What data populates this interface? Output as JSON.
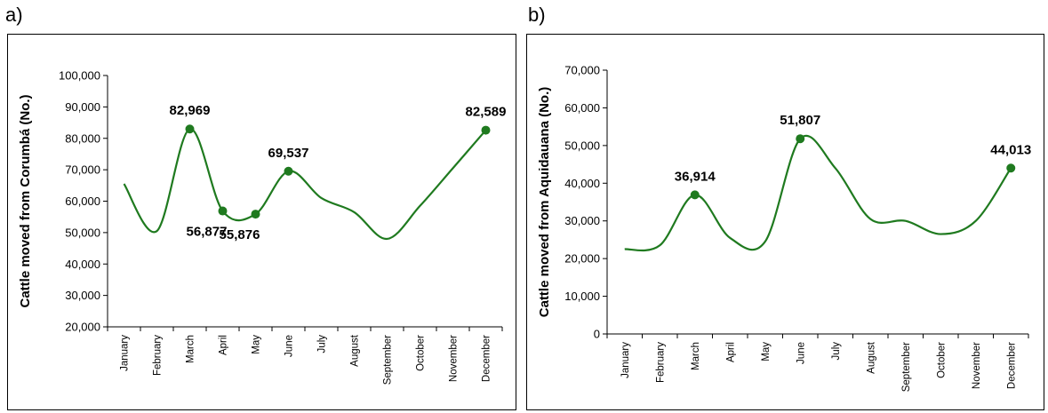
{
  "panels": [
    {
      "letter": "a)"
    },
    {
      "letter": "b)"
    }
  ],
  "chart_data": [
    {
      "type": "line",
      "title": "",
      "xlabel": "",
      "ylabel": "Cattle moved from Corumbá (No.)",
      "categories": [
        "January",
        "February",
        "March",
        "April",
        "May",
        "June",
        "July",
        "August",
        "September",
        "October",
        "November",
        "December"
      ],
      "series": [
        {
          "values": [
            65500,
            50500,
            82969,
            56877,
            55876,
            69537,
            61000,
            56500,
            48000,
            58500,
            70500,
            82589
          ],
          "color": "#1f7a1f"
        }
      ],
      "highlighted_points": [
        {
          "index": 2,
          "label": "82,969",
          "label_pos": "above"
        },
        {
          "index": 3,
          "label": "56,877",
          "label_pos": "below"
        },
        {
          "index": 4,
          "label": "55,876",
          "label_pos": "below"
        },
        {
          "index": 5,
          "label": "69,537",
          "label_pos": "above"
        },
        {
          "index": 11,
          "label": "82,589",
          "label_pos": "above"
        }
      ],
      "ylim": [
        20000,
        100000
      ],
      "yticks": [
        20000,
        30000,
        40000,
        50000,
        60000,
        70000,
        80000,
        90000,
        100000
      ],
      "ytick_labels": [
        "20,000",
        "30,000",
        "40,000",
        "50,000",
        "60,000",
        "70,000",
        "80,000",
        "90,000",
        "100,000"
      ],
      "grid": false,
      "legend": "none"
    },
    {
      "type": "line",
      "title": "",
      "xlabel": "",
      "ylabel": "Cattle moved from Aquidauana (No.)",
      "categories": [
        "January",
        "February",
        "March",
        "April",
        "May",
        "June",
        "July",
        "August",
        "September",
        "October",
        "November",
        "December"
      ],
      "series": [
        {
          "values": [
            22500,
            23500,
            36914,
            25500,
            24500,
            51807,
            44000,
            30500,
            30000,
            26500,
            30000,
            44013
          ],
          "color": "#1f7a1f"
        }
      ],
      "highlighted_points": [
        {
          "index": 2,
          "label": "36,914",
          "label_pos": "above"
        },
        {
          "index": 5,
          "label": "51,807",
          "label_pos": "above"
        },
        {
          "index": 11,
          "label": "44,013",
          "label_pos": "above"
        }
      ],
      "ylim": [
        0,
        70000
      ],
      "yticks": [
        0,
        10000,
        20000,
        30000,
        40000,
        50000,
        60000,
        70000
      ],
      "ytick_labels": [
        "0",
        "10,000",
        "20,000",
        "30,000",
        "40,000",
        "50,000",
        "60,000",
        "70,000"
      ],
      "grid": false,
      "legend": "none"
    }
  ]
}
